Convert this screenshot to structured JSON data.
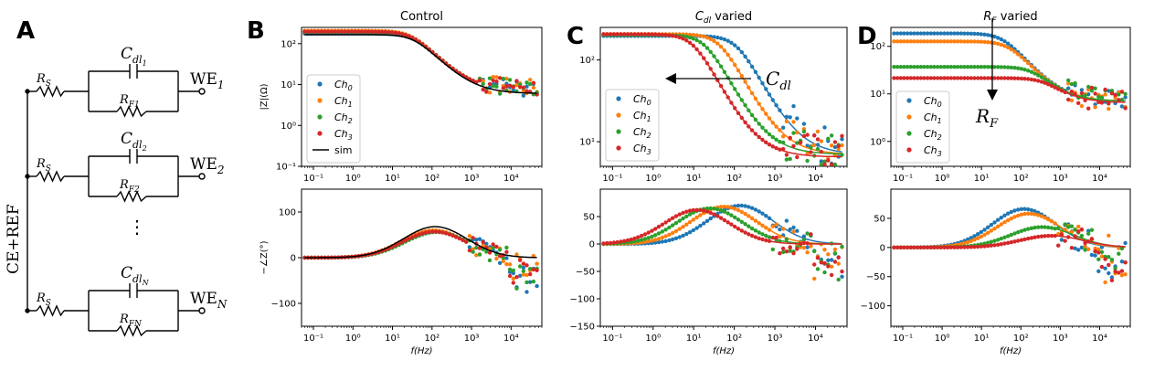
{
  "panel_letters": {
    "a": "A",
    "b": "B",
    "c": "C",
    "d": "D"
  },
  "circuit": {
    "vertical_label": "CE+REF",
    "rs": "R",
    "rs_sub": "S",
    "cdl": "C",
    "cdl_sub": "dl",
    "rf": "R",
    "rf_sub": "F",
    "we": "WE",
    "channels": [
      {
        "index": "1",
        "cdl_idx": "1",
        "rf_idx": "1"
      },
      {
        "index": "2",
        "cdl_idx": "2",
        "rf_idx": "2"
      },
      {
        "index": "N",
        "cdl_idx": "N",
        "rf_idx": "N"
      }
    ],
    "ellipsis": "⋮"
  },
  "colors": {
    "ch0": "#1f77b4",
    "ch1": "#ff7f0e",
    "ch2": "#2ca02c",
    "ch3": "#d62728",
    "sim": "#000000"
  },
  "legend_labels": {
    "ch": "Ch",
    "subs": [
      "0",
      "1",
      "2",
      "3"
    ],
    "sim": "sim"
  },
  "annotations": {
    "cdl_arrow": "C",
    "cdl_arrow_sub": "dl",
    "rf_arrow": "R",
    "rf_arrow_sub": "F"
  },
  "chart_data": [
    {
      "panel": "B",
      "type": "scatter+line",
      "title": "Control",
      "xscale": "log",
      "xlim": [
        0.05,
        60000
      ],
      "xlabel": "",
      "yscale": "log",
      "ylim": [
        0.1,
        250
      ],
      "ylabel": "|Z|(Ω)",
      "xticks": [
        "10⁻¹",
        "10⁰",
        "10¹",
        "10²",
        "10³",
        "10⁴"
      ],
      "yticks": [
        "10⁻¹",
        "10⁰",
        "10¹",
        "10²"
      ],
      "legend": [
        "Ch0",
        "Ch1",
        "Ch2",
        "Ch3",
        "sim"
      ],
      "series": [
        {
          "name": "Ch0",
          "Rs": 7,
          "Rf": 170,
          "fc": 35
        },
        {
          "name": "Ch1",
          "Rs": 7,
          "Rf": 200,
          "fc": 30
        },
        {
          "name": "Ch2",
          "Rs": 7,
          "Rf": 185,
          "fc": 32
        },
        {
          "name": "Ch3",
          "Rs": 7,
          "Rf": 190,
          "fc": 31
        },
        {
          "name": "sim",
          "Rs": 6,
          "Rf": 160,
          "fc": 35,
          "line": true
        }
      ]
    },
    {
      "panel": "B",
      "type": "scatter+line",
      "title": "",
      "xscale": "log",
      "xlim": [
        0.05,
        60000
      ],
      "xlabel": "f(Hz)",
      "yscale": "linear",
      "ylim": [
        -150,
        150
      ],
      "ylabel": "−∠Z(°)",
      "xticks": [
        "10⁻¹",
        "10⁰",
        "10¹",
        "10²",
        "10³",
        "10⁴"
      ],
      "yticks": [
        "−100",
        "0",
        "100"
      ],
      "series": [
        {
          "name": "Ch0",
          "peak": 58,
          "fpeak": 120
        },
        {
          "name": "Ch1",
          "peak": 60,
          "fpeak": 110
        },
        {
          "name": "Ch2",
          "peak": 56,
          "fpeak": 130
        },
        {
          "name": "Ch3",
          "peak": 57,
          "fpeak": 115
        },
        {
          "name": "sim",
          "peak": 68,
          "fpeak": 120,
          "line": true
        }
      ]
    },
    {
      "panel": "C",
      "type": "scatter+line",
      "title": "Cdl varied",
      "xscale": "log",
      "xlim": [
        0.05,
        60000
      ],
      "xlabel": "",
      "yscale": "log",
      "ylim": [
        5,
        250
      ],
      "ylabel": "",
      "xticks": [
        "10⁻¹",
        "10⁰",
        "10¹",
        "10²",
        "10³",
        "10⁴"
      ],
      "yticks": [
        "10¹",
        "10²"
      ],
      "legend": [
        "Ch0",
        "Ch1",
        "Ch2",
        "Ch3"
      ],
      "series": [
        {
          "name": "Ch0",
          "Rs": 7,
          "Rf": 190,
          "fc": 120
        },
        {
          "name": "Ch1",
          "Rs": 7,
          "Rf": 200,
          "fc": 45
        },
        {
          "name": "Ch2",
          "Rs": 7,
          "Rf": 195,
          "fc": 20
        },
        {
          "name": "Ch3",
          "Rs": 6.5,
          "Rf": 200,
          "fc": 10
        }
      ]
    },
    {
      "panel": "C",
      "type": "scatter+line",
      "title": "",
      "xscale": "log",
      "xlim": [
        0.05,
        60000
      ],
      "xlabel": "f(Hz)",
      "yscale": "linear",
      "ylim": [
        -150,
        100
      ],
      "ylabel": "",
      "xticks": [
        "10⁻¹",
        "10⁰",
        "10¹",
        "10²",
        "10³",
        "10⁴"
      ],
      "yticks": [
        "−150",
        "−100",
        "−50",
        "0",
        "50"
      ],
      "series": [
        {
          "name": "Ch0",
          "peak": 70,
          "fpeak": 140
        },
        {
          "name": "Ch1",
          "peak": 68,
          "fpeak": 55
        },
        {
          "name": "Ch2",
          "peak": 65,
          "fpeak": 25
        },
        {
          "name": "Ch3",
          "peak": 62,
          "fpeak": 12
        }
      ]
    },
    {
      "panel": "D",
      "type": "scatter+line",
      "title": "RF varied",
      "xscale": "log",
      "xlim": [
        0.05,
        60000
      ],
      "xlabel": "",
      "yscale": "log",
      "ylim": [
        0.3,
        250
      ],
      "ylabel": "",
      "xticks": [
        "10⁻¹",
        "10⁰",
        "10¹",
        "10²",
        "10³",
        "10⁴"
      ],
      "yticks": [
        "10⁰",
        "10¹",
        "10²"
      ],
      "legend": [
        "Ch0",
        "Ch1",
        "Ch2",
        "Ch3"
      ],
      "series": [
        {
          "name": "Ch0",
          "Rs": 7,
          "Rf": 180,
          "fc": 35
        },
        {
          "name": "Ch1",
          "Rs": 7,
          "Rf": 120,
          "fc": 50
        },
        {
          "name": "Ch2",
          "Rs": 7,
          "Rf": 30,
          "fc": 200
        },
        {
          "name": "Ch3",
          "Rs": 6.5,
          "Rf": 15,
          "fc": 400
        }
      ]
    },
    {
      "panel": "D",
      "type": "scatter+line",
      "title": "",
      "xscale": "log",
      "xlim": [
        0.05,
        60000
      ],
      "xlabel": "f(Hz)",
      "yscale": "linear",
      "ylim": [
        -135,
        100
      ],
      "ylabel": "",
      "xticks": [
        "10⁻¹",
        "10⁰",
        "10¹",
        "10²",
        "10³",
        "10⁴"
      ],
      "yticks": [
        "−100",
        "−50",
        "0",
        "50"
      ],
      "series": [
        {
          "name": "Ch0",
          "peak": 66,
          "fpeak": 120
        },
        {
          "name": "Ch1",
          "peak": 58,
          "fpeak": 160
        },
        {
          "name": "Ch2",
          "peak": 35,
          "fpeak": 350
        },
        {
          "name": "Ch3",
          "peak": 20,
          "fpeak": 600
        }
      ]
    }
  ]
}
